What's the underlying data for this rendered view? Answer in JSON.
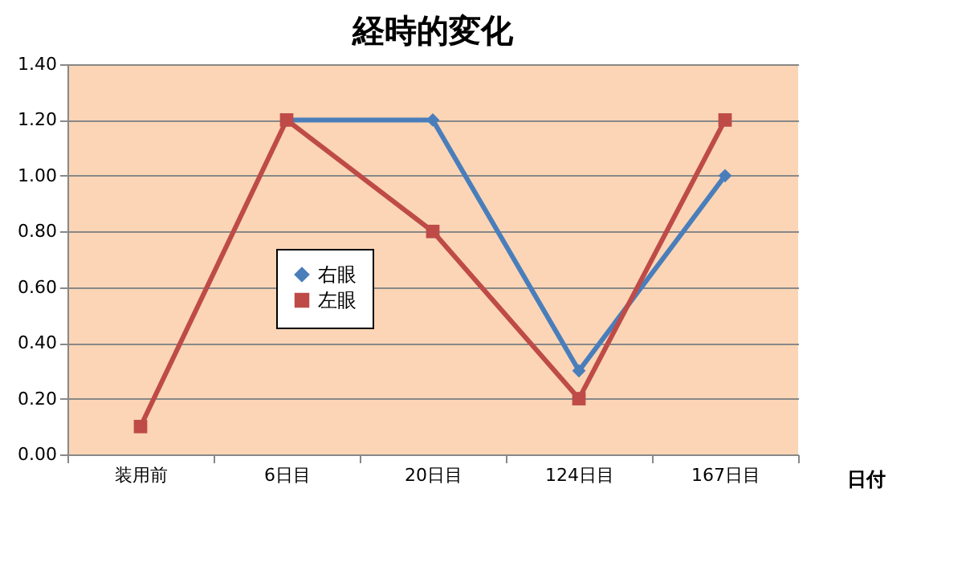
{
  "chart_data": {
    "type": "line",
    "title": "経時的変化",
    "xlabel": "日付",
    "categories": [
      "装用前",
      "6日目",
      "20日目",
      "124日目",
      "167日目"
    ],
    "series": [
      {
        "name": "右眼",
        "color": "#4a7ebb",
        "marker": "diamond",
        "values": [
          null,
          1.2,
          1.2,
          0.3,
          1.0
        ]
      },
      {
        "name": "左眼",
        "color": "#be4b48",
        "marker": "square",
        "values": [
          0.1,
          1.2,
          0.8,
          0.2,
          1.2
        ]
      }
    ],
    "ylim": [
      0,
      1.4
    ],
    "yticks": [
      {
        "value": 0,
        "label": "0.00"
      },
      {
        "value": 0.2,
        "label": "0.20"
      },
      {
        "value": 0.4,
        "label": "0.40"
      },
      {
        "value": 0.6,
        "label": "0.60"
      },
      {
        "value": 0.8,
        "label": "0.80"
      },
      {
        "value": 1.0,
        "label": "1.00"
      },
      {
        "value": 1.2,
        "label": "1.20"
      },
      {
        "value": 1.4,
        "label": "1.40"
      }
    ],
    "grid": "y",
    "legend": "center",
    "line_style": "solid"
  }
}
